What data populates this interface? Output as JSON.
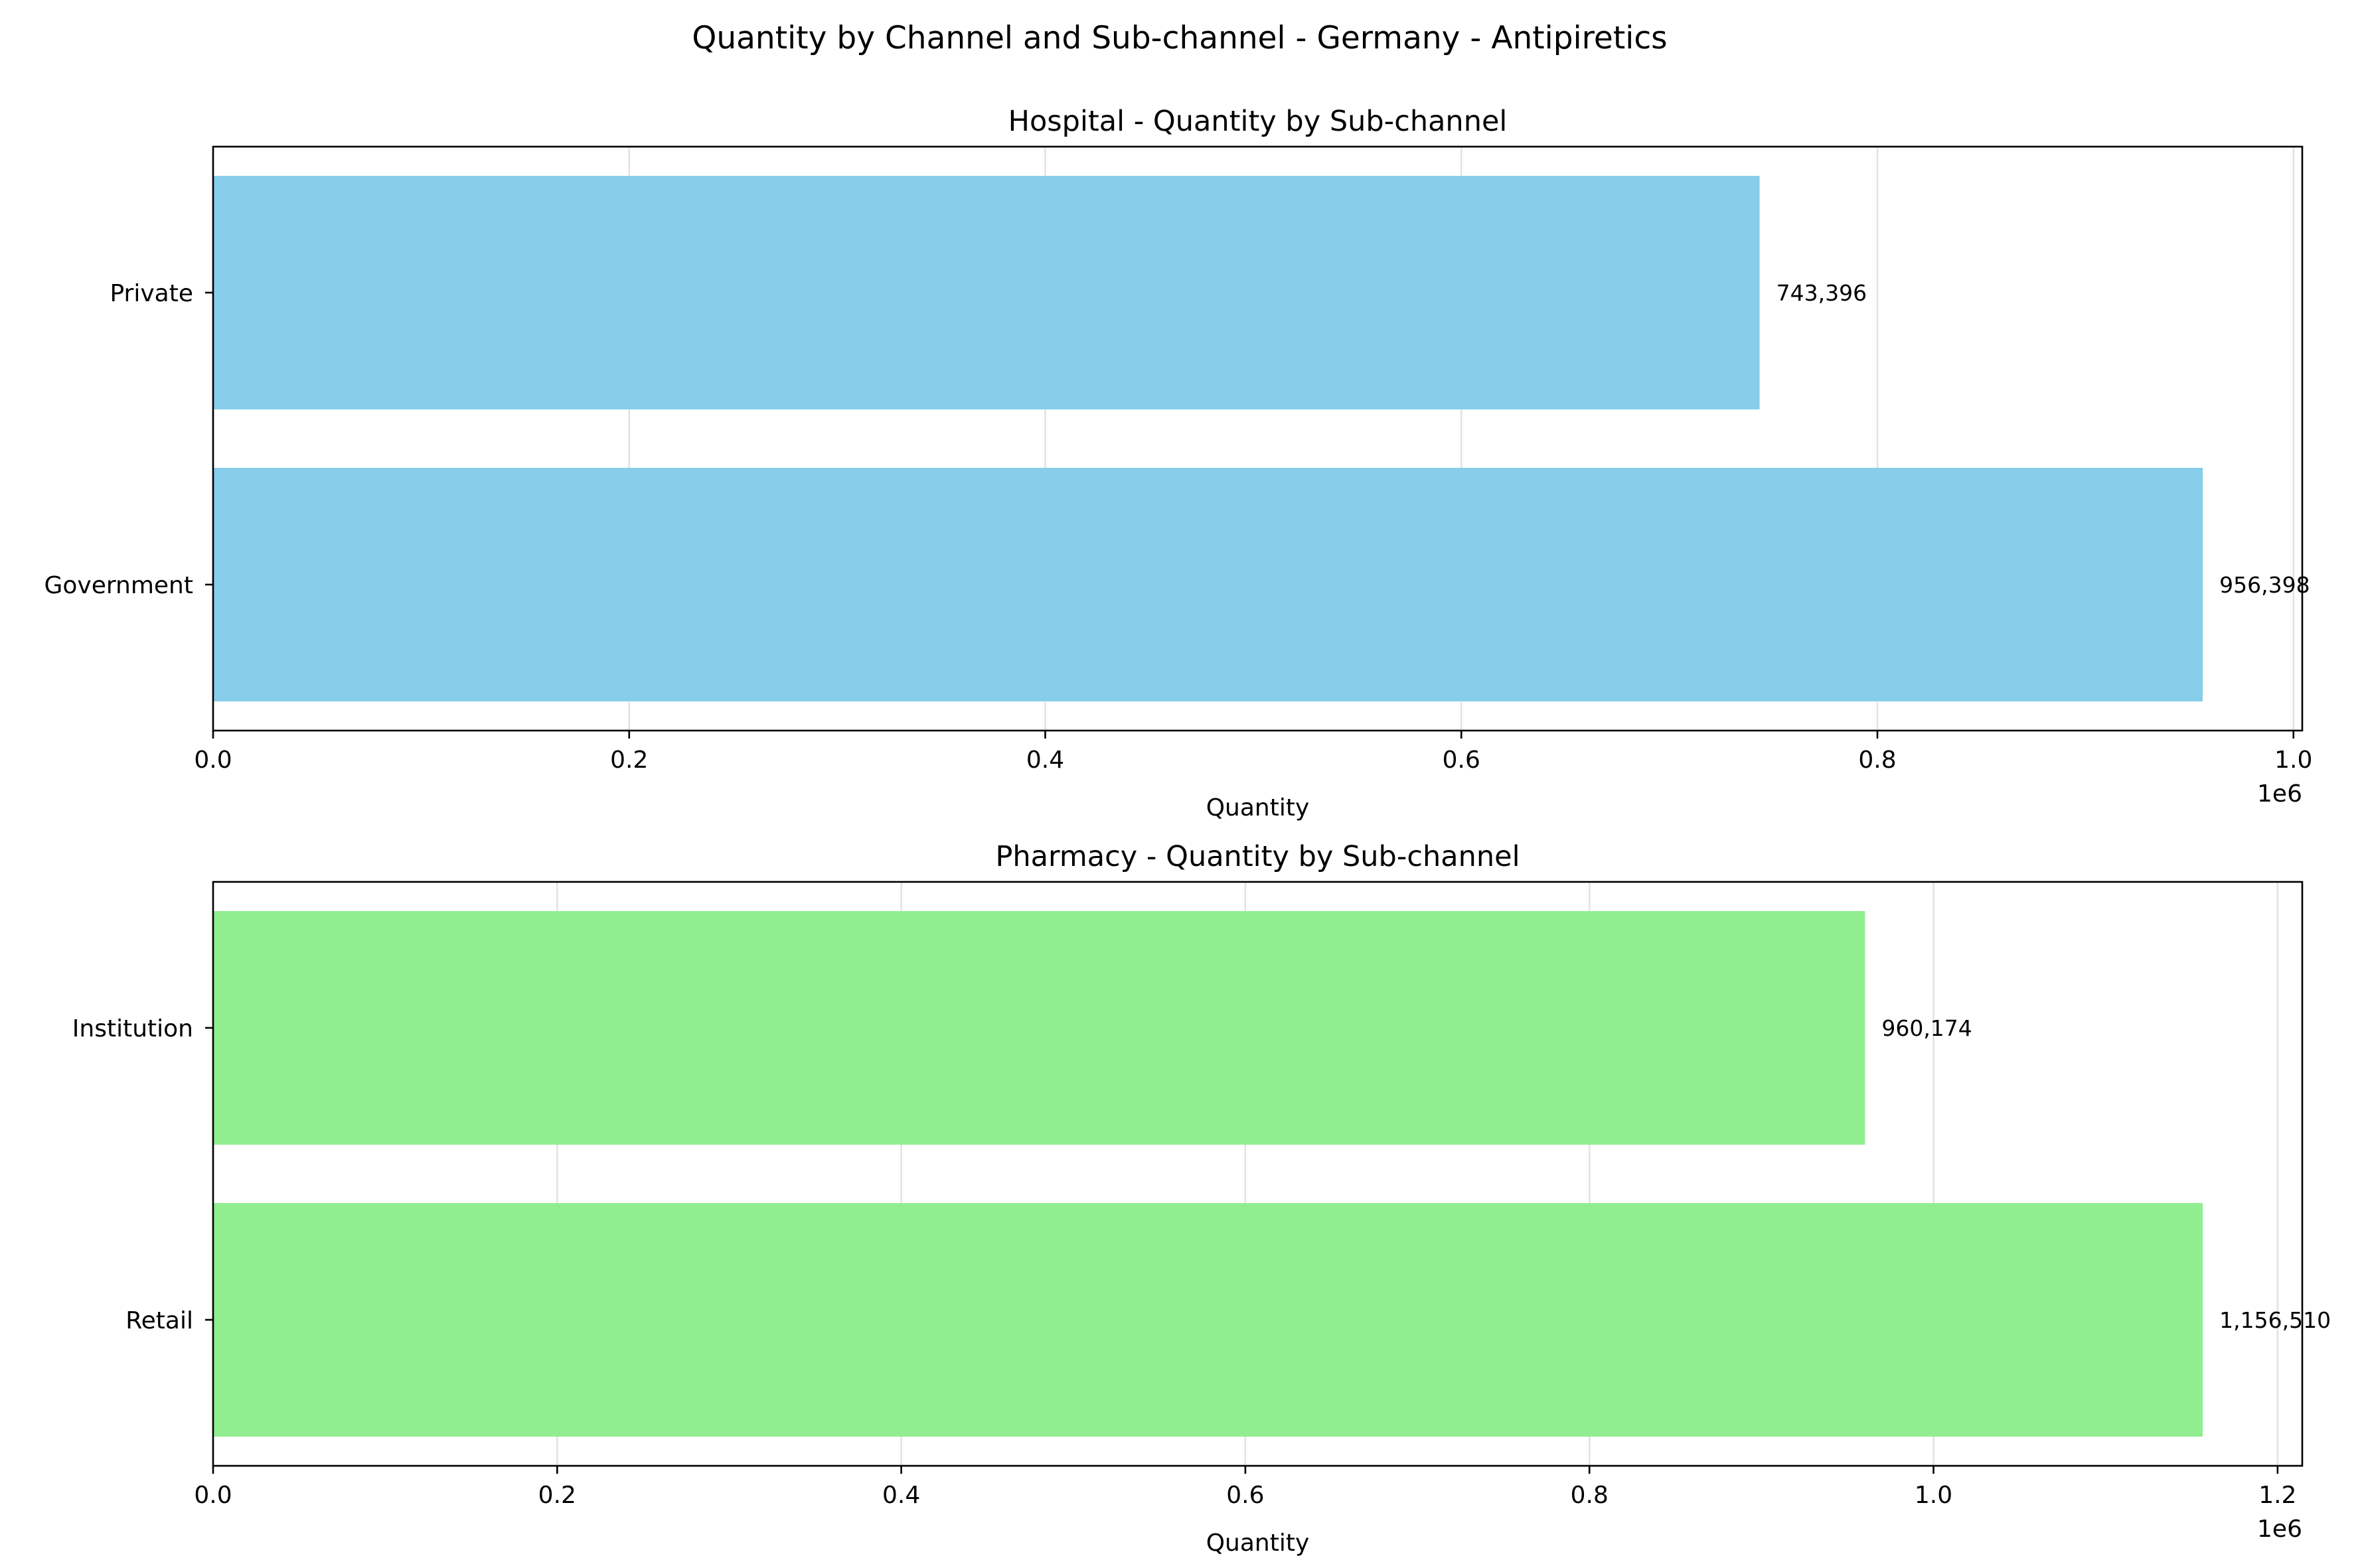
{
  "chart_data": {
    "title": "Quantity by Channel and Sub-channel - Germany - Antipiretics",
    "panels": [
      {
        "type": "bar",
        "orientation": "horizontal",
        "title": "Hospital - Quantity by Sub-channel",
        "xlabel": "Quantity",
        "ylabel": "",
        "offset_text": "1e6",
        "categories": [
          "Private",
          "Government"
        ],
        "values": [
          743396,
          956398
        ],
        "value_labels": [
          "743,396",
          "956,398"
        ],
        "xlim": [
          0,
          1004217.9
        ],
        "xticks": [
          0,
          200000,
          400000,
          600000,
          800000,
          1000000
        ],
        "xtick_labels": [
          "0.0",
          "0.2",
          "0.4",
          "0.6",
          "0.8",
          "1.0"
        ],
        "color": "#87CEEB",
        "grid": true
      },
      {
        "type": "bar",
        "orientation": "horizontal",
        "title": "Pharmacy - Quantity by Sub-channel",
        "xlabel": "Quantity",
        "ylabel": "",
        "offset_text": "1e6",
        "categories": [
          "Institution",
          "Retail"
        ],
        "values": [
          960174,
          1156510
        ],
        "value_labels": [
          "960,174",
          "1,156,510"
        ],
        "xlim": [
          0,
          1214335.5
        ],
        "xticks": [
          0,
          200000,
          400000,
          600000,
          800000,
          1000000,
          1200000
        ],
        "xtick_labels": [
          "0.0",
          "0.2",
          "0.4",
          "0.6",
          "0.8",
          "1.0",
          "1.2"
        ],
        "color": "#90EE90",
        "grid": true
      }
    ]
  }
}
